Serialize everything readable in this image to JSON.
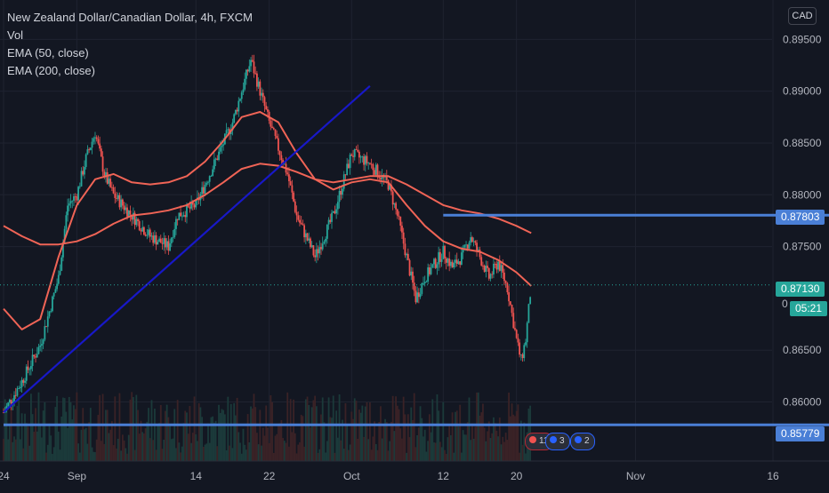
{
  "legend": {
    "title": "New Zealand Dollar/Canadian Dollar, 4h, FXCM",
    "vol": "Vol",
    "ema50": "EMA (50, close)",
    "ema200": "EMA (200, close)"
  },
  "currency_button": "CAD",
  "colors": {
    "background": "#131722",
    "grid": "#1f2330",
    "up": "#26a69a",
    "down": "#ef5350",
    "ema": "#f06456",
    "trendline": "#1818c8",
    "hline": "#4a7fd6",
    "current_price": "#26a69a",
    "axis_text": "#b2b5be"
  },
  "axis": {
    "y_ticks": [
      "0.89500",
      "0.89000",
      "0.88500",
      "0.88000",
      "0.87500",
      "0.86500",
      "0.86000"
    ],
    "x_ticks": [
      {
        "label": "24",
        "day": 24
      },
      {
        "label": "Sep",
        "day": 32
      },
      {
        "label": "14",
        "day": 45
      },
      {
        "label": "22",
        "day": 53
      },
      {
        "label": "Oct",
        "day": 62
      },
      {
        "label": "12",
        "day": 72
      },
      {
        "label": "20",
        "day": 80
      },
      {
        "label": "Nov",
        "day": 93
      },
      {
        "label": "16",
        "day": 108
      }
    ]
  },
  "price_tags": {
    "resistance": "0.87803",
    "current": "0.87130",
    "countdown": "05:21",
    "support": "0.85779",
    "partial": "0"
  },
  "event_badges": {
    "first": "11",
    "second": "3",
    "third": "2"
  },
  "chart_data": {
    "type": "candlestick",
    "symbol": "NZD/CAD",
    "interval": "4h",
    "ylim": [
      0.8543,
      0.8988
    ],
    "y_ticks": [
      0.895,
      0.89,
      0.885,
      0.88,
      0.875,
      0.865,
      0.86
    ],
    "x_range_days": [
      24,
      118
    ],
    "price_path": [
      [
        24,
        0.859
      ],
      [
        26,
        0.862
      ],
      [
        28,
        0.8655
      ],
      [
        30,
        0.872
      ],
      [
        31,
        0.879
      ],
      [
        32,
        0.88
      ],
      [
        33,
        0.8835
      ],
      [
        34,
        0.886
      ],
      [
        35,
        0.882
      ],
      [
        36,
        0.88
      ],
      [
        38,
        0.878
      ],
      [
        40,
        0.876
      ],
      [
        42,
        0.875
      ],
      [
        43,
        0.878
      ],
      [
        45,
        0.879
      ],
      [
        47,
        0.883
      ],
      [
        49,
        0.887
      ],
      [
        51,
        0.893
      ],
      [
        52,
        0.89
      ],
      [
        53,
        0.887
      ],
      [
        55,
        0.882
      ],
      [
        56,
        0.878
      ],
      [
        58,
        0.874
      ],
      [
        60,
        0.878
      ],
      [
        61,
        0.881
      ],
      [
        62,
        0.884
      ],
      [
        64,
        0.883
      ],
      [
        66,
        0.881
      ],
      [
        67,
        0.878
      ],
      [
        68,
        0.874
      ],
      [
        69,
        0.87
      ],
      [
        70,
        0.872
      ],
      [
        72,
        0.8745
      ],
      [
        73,
        0.873
      ],
      [
        74,
        0.874
      ],
      [
        75,
        0.876
      ],
      [
        76,
        0.874
      ],
      [
        77,
        0.872
      ],
      [
        78,
        0.8735
      ],
      [
        79,
        0.871
      ],
      [
        80,
        0.866
      ],
      [
        80.5,
        0.864
      ],
      [
        81,
        0.866
      ],
      [
        81.6,
        0.8713
      ]
    ],
    "ema50": [
      [
        24,
        0.869
      ],
      [
        26,
        0.867
      ],
      [
        28,
        0.868
      ],
      [
        30,
        0.874
      ],
      [
        32,
        0.879
      ],
      [
        34,
        0.8815
      ],
      [
        36,
        0.882
      ],
      [
        38,
        0.8812
      ],
      [
        40,
        0.881
      ],
      [
        42,
        0.8812
      ],
      [
        44,
        0.8818
      ],
      [
        46,
        0.8832
      ],
      [
        48,
        0.8852
      ],
      [
        50,
        0.8875
      ],
      [
        52,
        0.888
      ],
      [
        54,
        0.887
      ],
      [
        56,
        0.884
      ],
      [
        58,
        0.8815
      ],
      [
        60,
        0.8805
      ],
      [
        62,
        0.8812
      ],
      [
        64,
        0.8815
      ],
      [
        66,
        0.8812
      ],
      [
        68,
        0.879
      ],
      [
        70,
        0.877
      ],
      [
        72,
        0.8755
      ],
      [
        74,
        0.8748
      ],
      [
        76,
        0.8745
      ],
      [
        78,
        0.8737
      ],
      [
        80,
        0.8725
      ],
      [
        81.6,
        0.8712
      ]
    ],
    "ema200": [
      [
        24,
        0.877
      ],
      [
        26,
        0.876
      ],
      [
        28,
        0.8752
      ],
      [
        30,
        0.8752
      ],
      [
        32,
        0.8755
      ],
      [
        34,
        0.8762
      ],
      [
        36,
        0.8772
      ],
      [
        38,
        0.878
      ],
      [
        40,
        0.8782
      ],
      [
        42,
        0.8785
      ],
      [
        44,
        0.879
      ],
      [
        46,
        0.88
      ],
      [
        48,
        0.8812
      ],
      [
        50,
        0.8825
      ],
      [
        52,
        0.883
      ],
      [
        54,
        0.8828
      ],
      [
        56,
        0.8822
      ],
      [
        58,
        0.8815
      ],
      [
        60,
        0.8812
      ],
      [
        62,
        0.8815
      ],
      [
        64,
        0.8818
      ],
      [
        66,
        0.8818
      ],
      [
        68,
        0.881
      ],
      [
        70,
        0.88
      ],
      [
        72,
        0.879
      ],
      [
        74,
        0.8785
      ],
      [
        76,
        0.8782
      ],
      [
        78,
        0.8777
      ],
      [
        80,
        0.877
      ],
      [
        81.6,
        0.8763
      ]
    ],
    "trendline": [
      [
        24,
        0.859
      ],
      [
        64,
        0.8905
      ]
    ],
    "horizontal_lines": [
      {
        "value": 0.87803,
        "from_day": 72,
        "to_day": 118
      },
      {
        "value": 0.85779,
        "from_day": 24,
        "to_day": 118
      }
    ],
    "current_price": 0.8713
  }
}
